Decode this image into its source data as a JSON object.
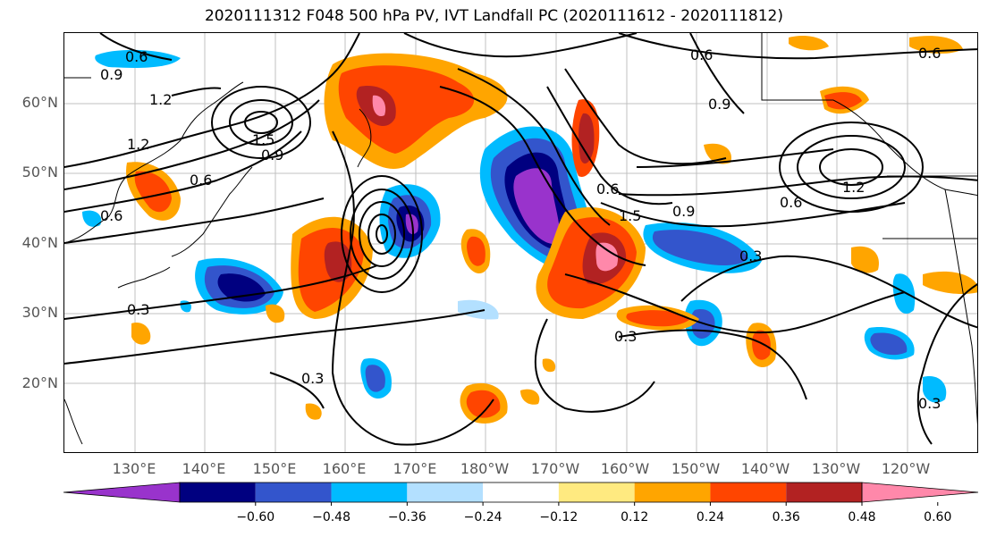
{
  "title": "2020111312 F048 500 hPa PV, IVT Landfall PC (2020111612 - 2020111812)",
  "lat_labels": [
    "60°N",
    "50°N",
    "40°N",
    "30°N",
    "20°N"
  ],
  "lon_labels": [
    "130°E",
    "140°E",
    "150°E",
    "160°E",
    "170°E",
    "180°W",
    "170°W",
    "160°W",
    "150°W",
    "140°W",
    "130°W",
    "120°W"
  ],
  "colorbar": {
    "colors": [
      "#9933cc",
      "#000080",
      "#3355cc",
      "#00bbff",
      "#b3e0ff",
      "#ffffff",
      "#ffea80",
      "#ffa500",
      "#ff4500",
      "#b22222",
      "#ff88aa"
    ],
    "ticks": [
      "−0.60",
      "−0.48",
      "−0.36",
      "−0.24",
      "−0.12",
      "0.12",
      "0.24",
      "0.36",
      "0.48",
      "0.60"
    ],
    "extend": "both"
  },
  "contour_labels": [
    "0.6",
    "0.9",
    "1.2",
    "1.2",
    "1.5",
    "0.9",
    "0.6",
    "0.6",
    "0.6",
    "0.9",
    "1.5",
    "0.3",
    "0.3",
    "0.3",
    "0.3",
    "0.6",
    "0.9",
    "0.6",
    "0.6",
    "1.2",
    "0.3"
  ],
  "colors": {
    "label_gray": "#555555",
    "contour": "#000000",
    "grid": "#999999"
  }
}
